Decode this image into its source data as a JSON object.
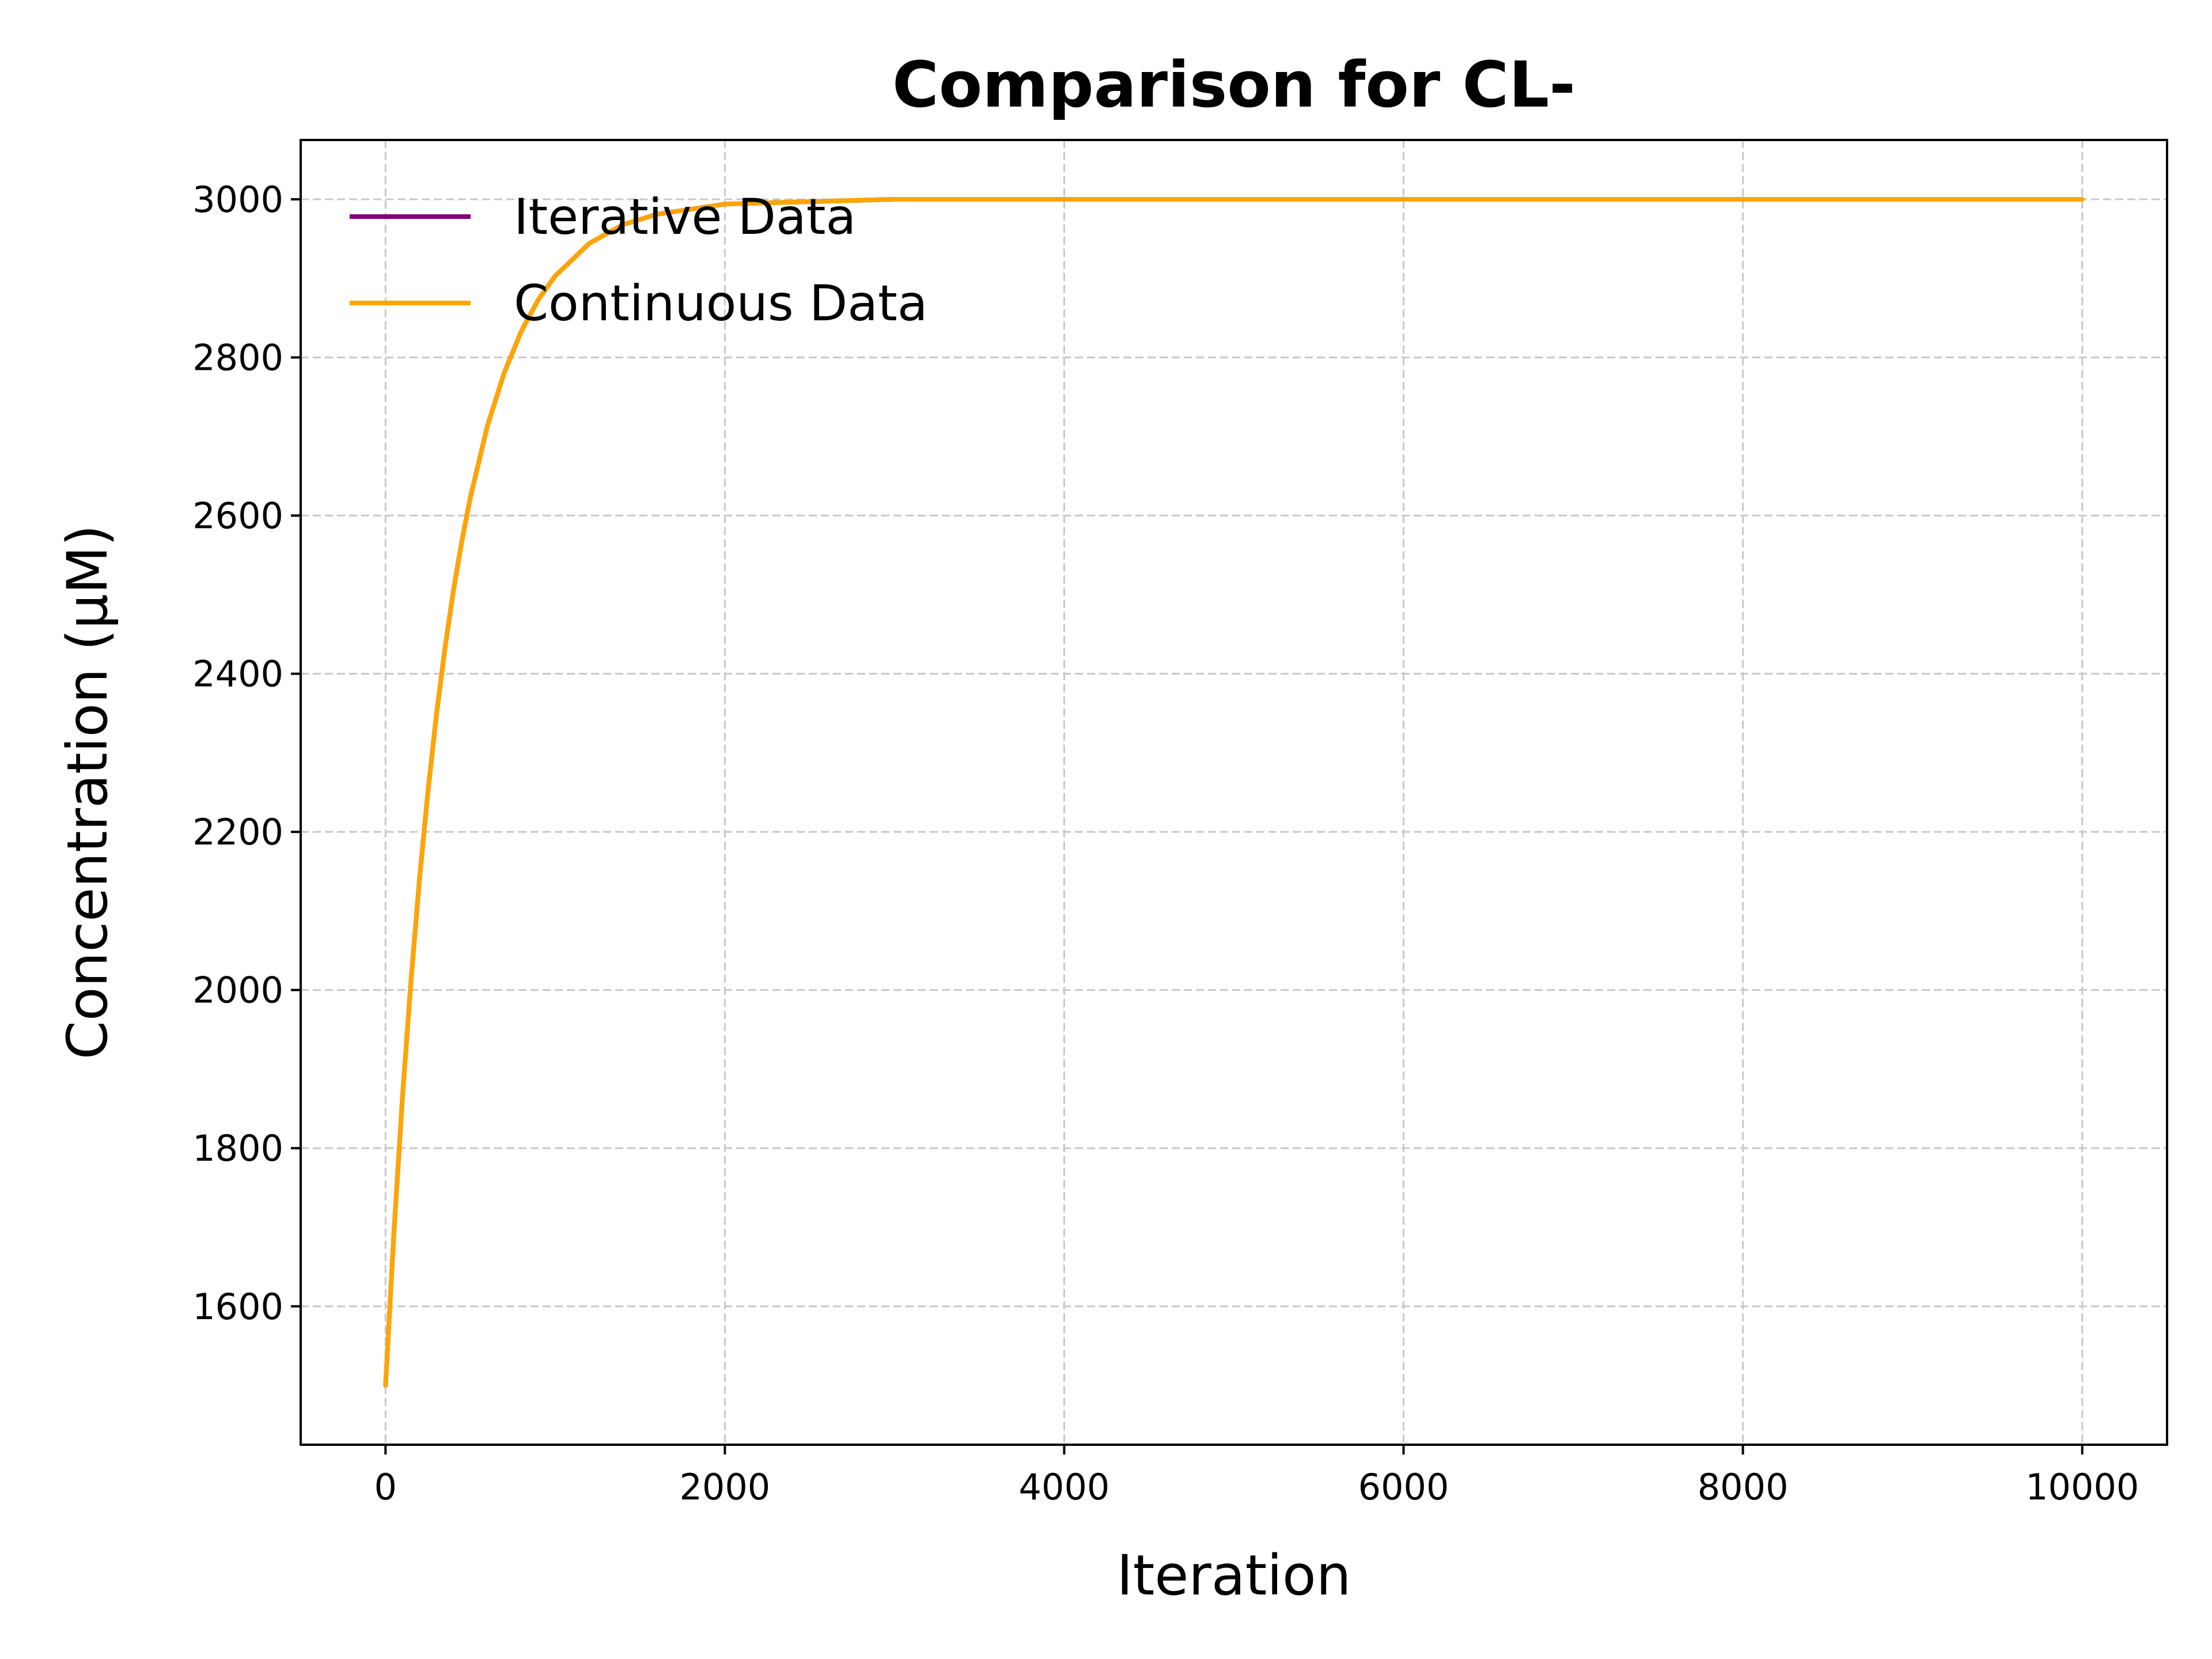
{
  "chart_data": {
    "type": "line",
    "title": "Comparison for CL-",
    "xlabel": "Iteration",
    "ylabel": "Concentration (μM)",
    "xlim": [
      -500,
      10500
    ],
    "ylim": [
      1425,
      3075
    ],
    "xticks": [
      0,
      2000,
      4000,
      6000,
      8000,
      10000
    ],
    "yticks": [
      1600,
      1800,
      2000,
      2200,
      2400,
      2600,
      2800,
      3000
    ],
    "grid": true,
    "grid_style": "dashed",
    "legend_position": "upper-left",
    "series": [
      {
        "name": "Iterative Data",
        "color": "#800080",
        "x": [
          0,
          50,
          100,
          150,
          200,
          250,
          300,
          350,
          400,
          450,
          500,
          600,
          700,
          800,
          900,
          1000,
          1200,
          1400,
          1600,
          2000,
          3000,
          4000,
          5000,
          6000,
          7000,
          8000,
          9000,
          10000
        ],
        "y": [
          1500,
          1695,
          1865,
          2012,
          2140,
          2251,
          2348,
          2432,
          2505,
          2568,
          2623,
          2713,
          2781,
          2833,
          2873,
          2903,
          2944,
          2968,
          2981,
          2994,
          3000,
          3000,
          3000,
          3000,
          3000,
          3000,
          3000,
          3000
        ]
      },
      {
        "name": "Continuous Data",
        "color": "#ffa500",
        "x": [
          0,
          50,
          100,
          150,
          200,
          250,
          300,
          350,
          400,
          450,
          500,
          600,
          700,
          800,
          900,
          1000,
          1200,
          1400,
          1600,
          2000,
          3000,
          4000,
          5000,
          6000,
          7000,
          8000,
          9000,
          10000
        ],
        "y": [
          1500,
          1695,
          1865,
          2012,
          2140,
          2251,
          2348,
          2432,
          2505,
          2568,
          2623,
          2713,
          2781,
          2833,
          2873,
          2903,
          2944,
          2968,
          2981,
          2994,
          3000,
          3000,
          3000,
          3000,
          3000,
          3000,
          3000,
          3000
        ]
      }
    ]
  }
}
